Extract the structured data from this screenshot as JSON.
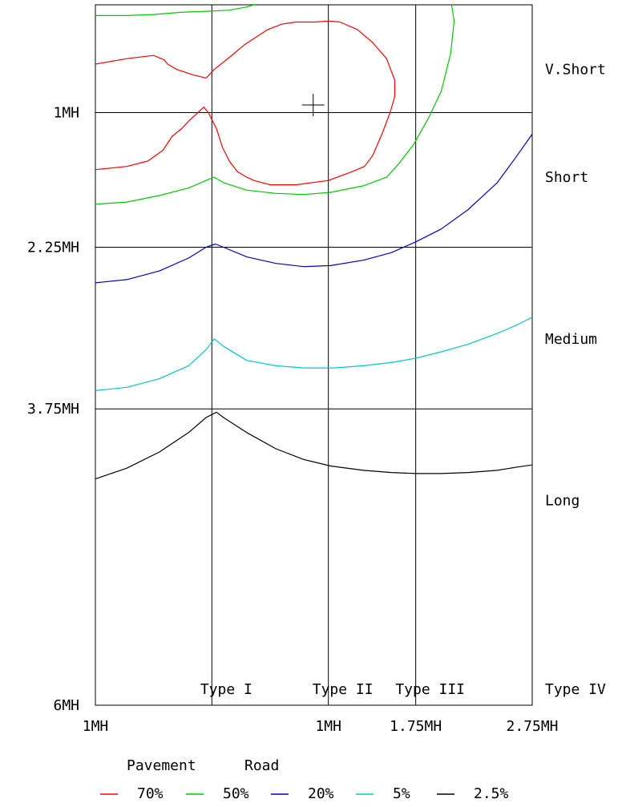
{
  "chart_data": {
    "type": "line",
    "title": "",
    "xlabel": "",
    "ylabel": "",
    "xlim": [
      0,
      3.75
    ],
    "ylim": [
      0,
      6.5
    ],
    "x_ticks": [
      {
        "label": "1MH",
        "value": 0
      },
      {
        "label": "1MH",
        "value": 2.0
      },
      {
        "label": "1.75MH",
        "value": 2.75
      },
      {
        "label": "2.75MH",
        "value": 3.75
      }
    ],
    "y_ticks": [
      {
        "label": "1MH",
        "value": 1.0
      },
      {
        "label": "2.25MH",
        "value": 2.25
      },
      {
        "label": "3.75MH",
        "value": 3.75
      },
      {
        "label": "6MH",
        "value": 6.5
      }
    ],
    "v_gridlines": [
      1.0,
      2.0,
      2.75
    ],
    "h_gridlines": [
      1.0,
      2.25,
      3.75
    ],
    "column_labels": [
      {
        "label": "Type I",
        "value": 1.0
      },
      {
        "label": "Type II",
        "value": 2.0
      },
      {
        "label": "Type III",
        "value": 2.75
      },
      {
        "label": "Type IV",
        "value": 3.75
      }
    ],
    "row_labels": [
      {
        "label": "V.Short",
        "value": 0.6
      },
      {
        "label": "Short",
        "value": 1.6
      },
      {
        "label": "Medium",
        "value": 3.1
      },
      {
        "label": "Long",
        "value": 4.6
      }
    ],
    "cursor": {
      "x": 1.87,
      "y": 0.93
    },
    "legend": {
      "headers": [
        "Pavement",
        "Road"
      ],
      "position": "bottom"
    },
    "series": [
      {
        "name": "70%",
        "color": "#ff0000",
        "points": [
          [
            0,
            0.55
          ],
          [
            0.27,
            0.5
          ],
          [
            0.5,
            0.47
          ],
          [
            0.59,
            0.51
          ],
          [
            0.62,
            0.55
          ],
          [
            0.7,
            0.6
          ],
          [
            0.84,
            0.65
          ],
          [
            0.95,
            0.68
          ],
          [
            1.02,
            0.6
          ],
          [
            1.16,
            0.48
          ],
          [
            1.28,
            0.37
          ],
          [
            1.48,
            0.23
          ],
          [
            1.6,
            0.18
          ],
          [
            1.72,
            0.16
          ],
          [
            1.89,
            0.16
          ],
          [
            2.0,
            0.15
          ],
          [
            2.1,
            0.16
          ],
          [
            2.25,
            0.23
          ],
          [
            2.38,
            0.35
          ],
          [
            2.5,
            0.5
          ],
          [
            2.57,
            0.7
          ],
          [
            2.57,
            0.85
          ],
          [
            2.53,
            1.0
          ],
          [
            2.46,
            1.2
          ],
          [
            2.38,
            1.4
          ],
          [
            2.31,
            1.5
          ],
          [
            2.2,
            1.55
          ],
          [
            2.0,
            1.63
          ],
          [
            1.72,
            1.67
          ],
          [
            1.5,
            1.67
          ],
          [
            1.36,
            1.63
          ],
          [
            1.3,
            1.6
          ],
          [
            1.22,
            1.55
          ],
          [
            1.15,
            1.45
          ],
          [
            1.09,
            1.32
          ],
          [
            1.04,
            1.15
          ],
          [
            0.97,
            1.0
          ],
          [
            0.93,
            0.95
          ],
          [
            0.86,
            1.02
          ],
          [
            0.8,
            1.08
          ],
          [
            0.74,
            1.15
          ],
          [
            0.66,
            1.22
          ],
          [
            0.58,
            1.35
          ],
          [
            0.45,
            1.45
          ],
          [
            0.27,
            1.5
          ],
          [
            0,
            1.53
          ]
        ]
      },
      {
        "name": "50%",
        "color": "#00c800",
        "points": [
          [
            0,
            0.1
          ],
          [
            0.27,
            0.1
          ],
          [
            0.5,
            0.09
          ],
          [
            0.73,
            0.07
          ],
          [
            0.95,
            0.06
          ],
          [
            1.15,
            0.05
          ],
          [
            1.3,
            0.02
          ],
          [
            1.48,
            -0.04
          ]
        ]
      },
      {
        "name": "50%",
        "color": "#00c800",
        "points": [
          [
            0,
            1.85
          ],
          [
            0.27,
            1.83
          ],
          [
            0.55,
            1.77
          ],
          [
            0.8,
            1.7
          ],
          [
            0.95,
            1.63
          ],
          [
            1.02,
            1.6
          ],
          [
            1.1,
            1.65
          ],
          [
            1.3,
            1.72
          ],
          [
            1.55,
            1.75
          ],
          [
            1.79,
            1.76
          ],
          [
            2.02,
            1.74
          ],
          [
            2.3,
            1.68
          ],
          [
            2.5,
            1.6
          ],
          [
            2.6,
            1.48
          ],
          [
            2.73,
            1.3
          ],
          [
            2.86,
            1.05
          ],
          [
            2.97,
            0.8
          ],
          [
            3.05,
            0.45
          ],
          [
            3.08,
            0.15
          ],
          [
            3.05,
            -0.05
          ]
        ]
      },
      {
        "name": "20%",
        "color": "#0000c8",
        "points": [
          [
            0,
            2.58
          ],
          [
            0.27,
            2.55
          ],
          [
            0.55,
            2.47
          ],
          [
            0.8,
            2.35
          ],
          [
            0.95,
            2.25
          ],
          [
            1.03,
            2.22
          ],
          [
            1.1,
            2.25
          ],
          [
            1.3,
            2.34
          ],
          [
            1.55,
            2.4
          ],
          [
            1.79,
            2.43
          ],
          [
            2.02,
            2.42
          ],
          [
            2.3,
            2.37
          ],
          [
            2.54,
            2.3
          ],
          [
            2.75,
            2.2
          ],
          [
            2.97,
            2.08
          ],
          [
            3.2,
            1.9
          ],
          [
            3.45,
            1.65
          ],
          [
            3.62,
            1.4
          ],
          [
            3.75,
            1.2
          ]
        ]
      },
      {
        "name": "5%",
        "color": "#00c8c8",
        "points": [
          [
            0,
            3.58
          ],
          [
            0.27,
            3.55
          ],
          [
            0.55,
            3.47
          ],
          [
            0.8,
            3.35
          ],
          [
            0.95,
            3.2
          ],
          [
            1.02,
            3.1
          ],
          [
            1.1,
            3.17
          ],
          [
            1.3,
            3.3
          ],
          [
            1.55,
            3.35
          ],
          [
            1.79,
            3.37
          ],
          [
            2.05,
            3.37
          ],
          [
            2.3,
            3.35
          ],
          [
            2.54,
            3.32
          ],
          [
            2.75,
            3.28
          ],
          [
            2.97,
            3.22
          ],
          [
            3.2,
            3.15
          ],
          [
            3.45,
            3.05
          ],
          [
            3.62,
            2.97
          ],
          [
            3.75,
            2.9
          ]
        ]
      },
      {
        "name": "2.5%",
        "color": "#000000",
        "points": [
          [
            0,
            4.4
          ],
          [
            0.27,
            4.3
          ],
          [
            0.55,
            4.15
          ],
          [
            0.8,
            3.97
          ],
          [
            0.95,
            3.83
          ],
          [
            1.04,
            3.78
          ],
          [
            1.1,
            3.83
          ],
          [
            1.3,
            3.97
          ],
          [
            1.55,
            4.12
          ],
          [
            1.79,
            4.22
          ],
          [
            2.02,
            4.28
          ],
          [
            2.3,
            4.32
          ],
          [
            2.54,
            4.34
          ],
          [
            2.75,
            4.35
          ],
          [
            2.97,
            4.35
          ],
          [
            3.2,
            4.34
          ],
          [
            3.45,
            4.32
          ],
          [
            3.62,
            4.29
          ],
          [
            3.75,
            4.27
          ]
        ]
      }
    ]
  }
}
